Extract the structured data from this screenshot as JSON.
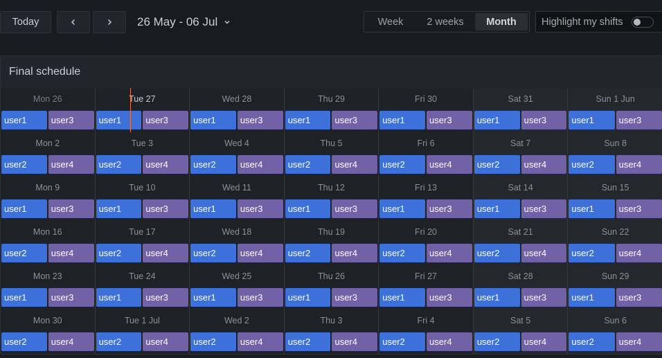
{
  "toolbar": {
    "today_label": "Today",
    "prev_icon": "chevron-left-icon",
    "next_icon": "chevron-right-icon",
    "date_range": "26 May - 06 Jul",
    "view_options": [
      "Week",
      "2 weeks",
      "Month"
    ],
    "selected_view": "Month",
    "highlight_label": "Highlight my shifts",
    "highlight_enabled": false
  },
  "panel": {
    "title": "Final schedule"
  },
  "colors": {
    "shift_blue": "#3d71d9",
    "shift_purple": "#7161a6",
    "today_marker": "#f0733e"
  },
  "weeks": [
    {
      "days": [
        {
          "label": "Mon 26",
          "shifts": [
            "user1",
            "user3"
          ],
          "state": "past"
        },
        {
          "label": "Tue 27",
          "shifts": [
            "user1",
            "user3"
          ],
          "state": "today"
        },
        {
          "label": "Wed 28",
          "shifts": [
            "user1",
            "user3"
          ]
        },
        {
          "label": "Thu 29",
          "shifts": [
            "user1",
            "user3"
          ]
        },
        {
          "label": "Fri 30",
          "shifts": [
            "user1",
            "user3"
          ]
        },
        {
          "label": "Sat 31",
          "shifts": [
            "user1",
            "user3"
          ]
        },
        {
          "label": "Sun 1 Jun",
          "shifts": [
            "user1",
            "user3"
          ]
        }
      ]
    },
    {
      "days": [
        {
          "label": "Mon 2",
          "shifts": [
            "user2",
            "user4"
          ]
        },
        {
          "label": "Tue 3",
          "shifts": [
            "user2",
            "user4"
          ]
        },
        {
          "label": "Wed 4",
          "shifts": [
            "user2",
            "user4"
          ]
        },
        {
          "label": "Thu 5",
          "shifts": [
            "user2",
            "user4"
          ]
        },
        {
          "label": "Fri 6",
          "shifts": [
            "user2",
            "user4"
          ]
        },
        {
          "label": "Sat 7",
          "shifts": [
            "user2",
            "user4"
          ]
        },
        {
          "label": "Sun 8",
          "shifts": [
            "user2",
            "user4"
          ]
        }
      ]
    },
    {
      "days": [
        {
          "label": "Mon 9",
          "shifts": [
            "user1",
            "user3"
          ]
        },
        {
          "label": "Tue 10",
          "shifts": [
            "user1",
            "user3"
          ]
        },
        {
          "label": "Wed 11",
          "shifts": [
            "user1",
            "user3"
          ]
        },
        {
          "label": "Thu 12",
          "shifts": [
            "user1",
            "user3"
          ]
        },
        {
          "label": "Fri 13",
          "shifts": [
            "user1",
            "user3"
          ]
        },
        {
          "label": "Sat 14",
          "shifts": [
            "user1",
            "user3"
          ]
        },
        {
          "label": "Sun 15",
          "shifts": [
            "user1",
            "user3"
          ]
        }
      ]
    },
    {
      "days": [
        {
          "label": "Mon 16",
          "shifts": [
            "user2",
            "user4"
          ]
        },
        {
          "label": "Tue 17",
          "shifts": [
            "user2",
            "user4"
          ]
        },
        {
          "label": "Wed 18",
          "shifts": [
            "user2",
            "user4"
          ]
        },
        {
          "label": "Thu 19",
          "shifts": [
            "user2",
            "user4"
          ]
        },
        {
          "label": "Fri 20",
          "shifts": [
            "user2",
            "user4"
          ]
        },
        {
          "label": "Sat 21",
          "shifts": [
            "user2",
            "user4"
          ]
        },
        {
          "label": "Sun 22",
          "shifts": [
            "user2",
            "user4"
          ]
        }
      ]
    },
    {
      "days": [
        {
          "label": "Mon 23",
          "shifts": [
            "user1",
            "user3"
          ]
        },
        {
          "label": "Tue 24",
          "shifts": [
            "user1",
            "user3"
          ]
        },
        {
          "label": "Wed 25",
          "shifts": [
            "user1",
            "user3"
          ]
        },
        {
          "label": "Thu 26",
          "shifts": [
            "user1",
            "user3"
          ]
        },
        {
          "label": "Fri 27",
          "shifts": [
            "user1",
            "user3"
          ]
        },
        {
          "label": "Sat 28",
          "shifts": [
            "user1",
            "user3"
          ]
        },
        {
          "label": "Sun 29",
          "shifts": [
            "user1",
            "user3"
          ]
        }
      ]
    },
    {
      "days": [
        {
          "label": "Mon 30",
          "shifts": [
            "user2",
            "user4"
          ]
        },
        {
          "label": "Tue 1 Jul",
          "shifts": [
            "user2",
            "user4"
          ]
        },
        {
          "label": "Wed 2",
          "shifts": [
            "user2",
            "user4"
          ]
        },
        {
          "label": "Thu 3",
          "shifts": [
            "user2",
            "user4"
          ]
        },
        {
          "label": "Fri 4",
          "shifts": [
            "user2",
            "user4"
          ]
        },
        {
          "label": "Sat 5",
          "shifts": [
            "user2",
            "user4"
          ]
        },
        {
          "label": "Sun 6",
          "shifts": [
            "user2",
            "user4"
          ]
        }
      ]
    }
  ]
}
